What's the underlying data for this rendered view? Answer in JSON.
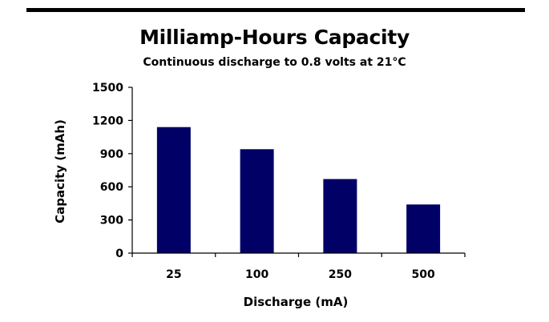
{
  "chart_data": {
    "type": "bar",
    "title": "Milliamp-Hours Capacity",
    "subtitle": "Continuous discharge to 0.8 volts at 21°C",
    "xlabel": "Discharge (mA)",
    "ylabel": "Capacity (mAh)",
    "categories": [
      "25",
      "100",
      "250",
      "500"
    ],
    "values": [
      1140,
      940,
      670,
      440
    ],
    "ylim": [
      0,
      1500
    ],
    "yticks": [
      "0",
      "300",
      "600",
      "900",
      "1200",
      "1500"
    ],
    "grid": false,
    "legend": "none",
    "bar_color": "#000066"
  }
}
